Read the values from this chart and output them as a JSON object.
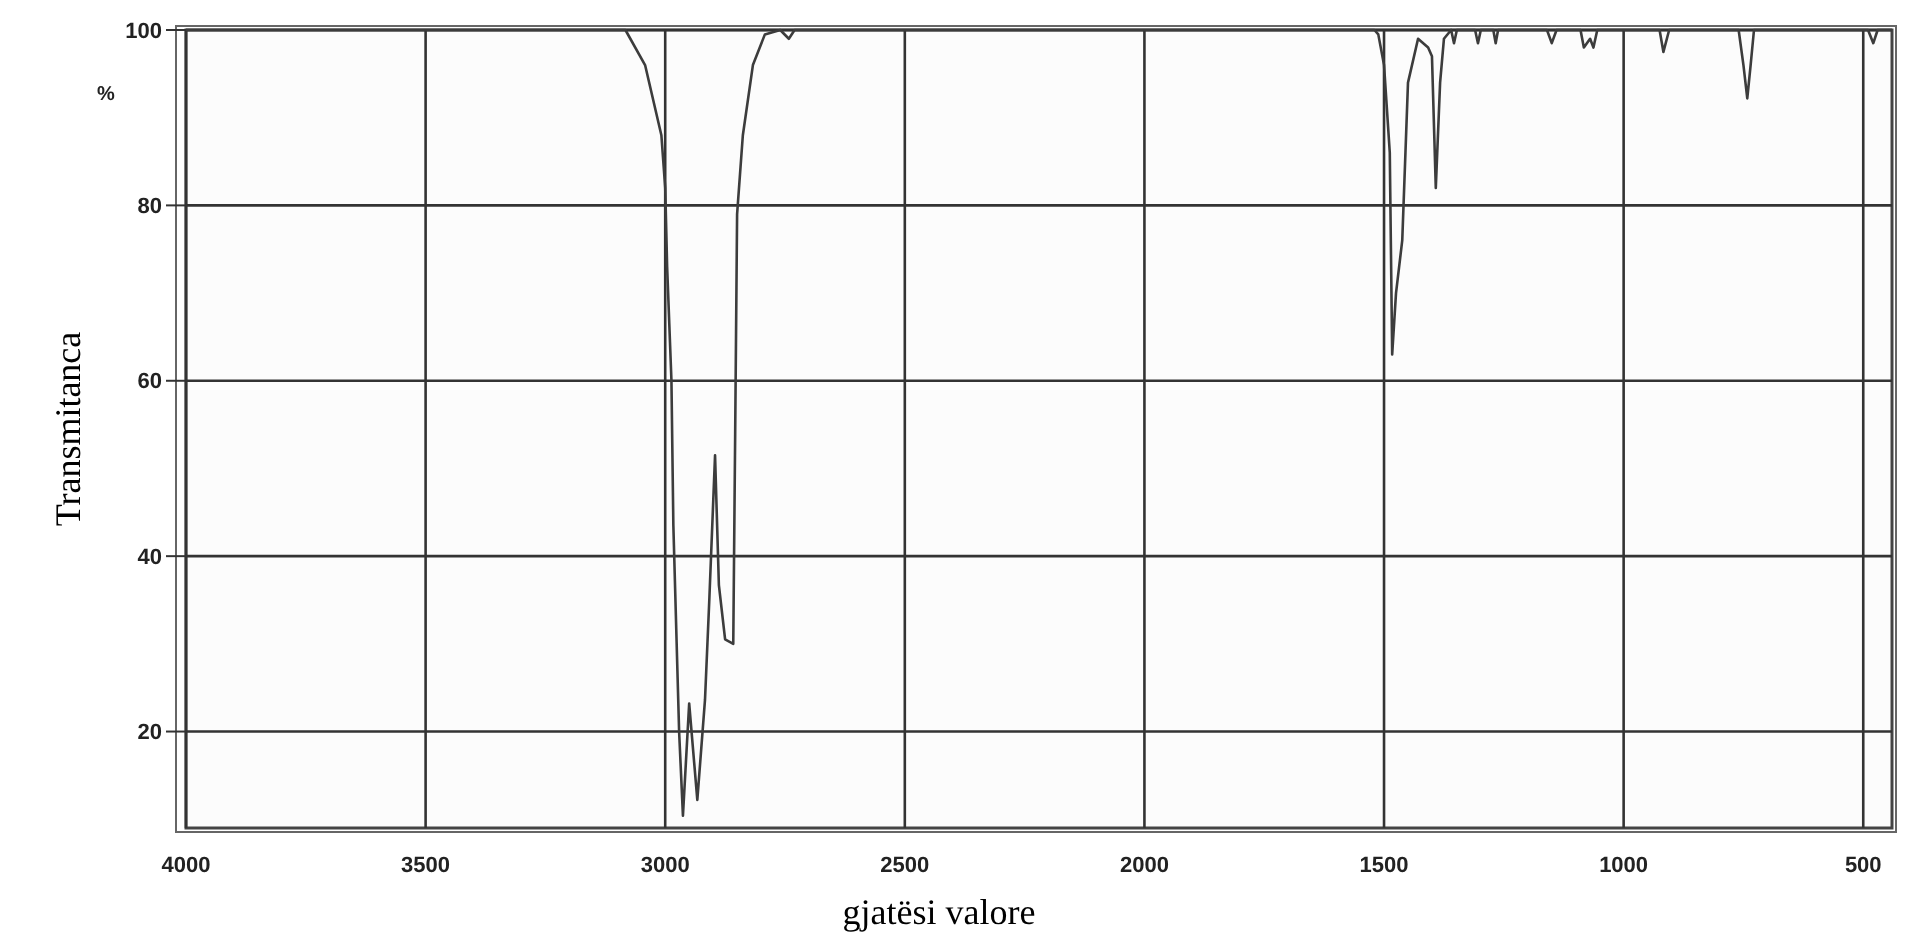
{
  "chart_data": {
    "type": "line",
    "xlabel": "gjatësi valore",
    "ylabel": "Transmitanca",
    "annotations": [
      "%"
    ],
    "x": [
      4000,
      3500,
      3100,
      3083,
      3042,
      3008,
      3000,
      2996,
      2987,
      2983,
      2971,
      2963,
      2950,
      2933,
      2917,
      2908,
      2896,
      2888,
      2875,
      2858,
      2854,
      2850,
      2838,
      2817,
      2792,
      2760,
      2742,
      2730,
      2600,
      2000,
      1520,
      1512,
      1500,
      1488,
      1483,
      1475,
      1462,
      1450,
      1429,
      1408,
      1400,
      1392,
      1383,
      1375,
      1360,
      1354,
      1348,
      1310,
      1304,
      1298,
      1272,
      1267,
      1262,
      1160,
      1150,
      1140,
      1090,
      1083,
      1070,
      1063,
      1055,
      925,
      917,
      905,
      760,
      750,
      742,
      735,
      728,
      490,
      479,
      470,
      440
    ],
    "series": [
      {
        "color": "#3c3c3c",
        "values": [
          100,
          100,
          100,
          100,
          96,
          88,
          82,
          73,
          60,
          43.5,
          20,
          10.4,
          23.2,
          12.2,
          23.6,
          35,
          51.5,
          36.7,
          30.5,
          30,
          54,
          79,
          88,
          96,
          99.5,
          100,
          99,
          100,
          100,
          100,
          100,
          99.5,
          96,
          86,
          63,
          70,
          76,
          94,
          99,
          98,
          97,
          82,
          94,
          99,
          100,
          98.5,
          100,
          100,
          98.5,
          100,
          100,
          98.5,
          100,
          100,
          98.5,
          100,
          100,
          98,
          99,
          98,
          100,
          100,
          97.5,
          100,
          100,
          96,
          92.2,
          96,
          100,
          100,
          98.5,
          100,
          100
        ]
      }
    ],
    "xlim": [
      4000,
      440
    ],
    "ylim": [
      9,
      100
    ],
    "xticks": [
      4000,
      3500,
      3000,
      2500,
      2000,
      1500,
      1000,
      500
    ],
    "yticks": [
      20,
      40,
      60,
      80,
      100
    ],
    "grid": true,
    "marker": "none",
    "line_style": "solid"
  }
}
